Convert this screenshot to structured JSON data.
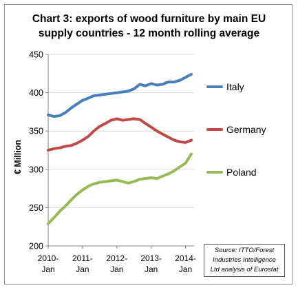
{
  "chart_data": {
    "type": "line",
    "title": [
      "Chart 3: exports of wood furniture by main EU",
      "supply countries - 12 month rolling average"
    ],
    "ylabel": "€ Million",
    "xlabel": "",
    "ylim": [
      200,
      450
    ],
    "yticks": [
      200,
      250,
      300,
      350,
      400,
      450
    ],
    "xlim": [
      2010.0,
      2014.25
    ],
    "xticks": [
      {
        "value": 2010,
        "line1": "2010-",
        "line2": "Jan"
      },
      {
        "value": 2011,
        "line1": "2011-",
        "line2": "Jan"
      },
      {
        "value": 2012,
        "line1": "2012-",
        "line2": "Jan"
      },
      {
        "value": 2013,
        "line1": "2013-",
        "line2": "Jan"
      },
      {
        "value": 2014,
        "line1": "2014-",
        "line2": "Jan"
      }
    ],
    "grid": "horizontal",
    "legend": "right",
    "series": [
      {
        "name": "Italy",
        "color": "#4a7ebb",
        "points": [
          [
            2010.0,
            371
          ],
          [
            2010.17,
            369
          ],
          [
            2010.33,
            370
          ],
          [
            2010.5,
            374
          ],
          [
            2010.67,
            380
          ],
          [
            2010.83,
            385
          ],
          [
            2011.0,
            390
          ],
          [
            2011.17,
            393
          ],
          [
            2011.33,
            396
          ],
          [
            2011.5,
            397
          ],
          [
            2011.67,
            398
          ],
          [
            2011.83,
            399
          ],
          [
            2012.0,
            400
          ],
          [
            2012.17,
            401
          ],
          [
            2012.33,
            402
          ],
          [
            2012.5,
            405
          ],
          [
            2012.67,
            411
          ],
          [
            2012.83,
            409
          ],
          [
            2013.0,
            412
          ],
          [
            2013.17,
            410
          ],
          [
            2013.33,
            411
          ],
          [
            2013.5,
            414
          ],
          [
            2013.67,
            414
          ],
          [
            2013.83,
            416
          ],
          [
            2014.0,
            420
          ],
          [
            2014.17,
            424
          ]
        ]
      },
      {
        "name": "Germany",
        "color": "#be4b48",
        "points": [
          [
            2010.0,
            325
          ],
          [
            2010.17,
            327
          ],
          [
            2010.33,
            328
          ],
          [
            2010.5,
            330
          ],
          [
            2010.67,
            331
          ],
          [
            2010.83,
            334
          ],
          [
            2011.0,
            338
          ],
          [
            2011.17,
            343
          ],
          [
            2011.33,
            350
          ],
          [
            2011.5,
            356
          ],
          [
            2011.67,
            360
          ],
          [
            2011.83,
            364
          ],
          [
            2012.0,
            366
          ],
          [
            2012.17,
            364
          ],
          [
            2012.33,
            365
          ],
          [
            2012.5,
            366
          ],
          [
            2012.67,
            365
          ],
          [
            2012.83,
            360
          ],
          [
            2013.0,
            355
          ],
          [
            2013.17,
            350
          ],
          [
            2013.33,
            346
          ],
          [
            2013.5,
            342
          ],
          [
            2013.67,
            338
          ],
          [
            2013.83,
            336
          ],
          [
            2014.0,
            335
          ],
          [
            2014.17,
            338
          ]
        ]
      },
      {
        "name": "Poland",
        "color": "#98b954",
        "points": [
          [
            2010.0,
            229
          ],
          [
            2010.17,
            237
          ],
          [
            2010.33,
            245
          ],
          [
            2010.5,
            252
          ],
          [
            2010.67,
            260
          ],
          [
            2010.83,
            267
          ],
          [
            2011.0,
            273
          ],
          [
            2011.17,
            278
          ],
          [
            2011.33,
            281
          ],
          [
            2011.5,
            283
          ],
          [
            2011.67,
            284
          ],
          [
            2011.83,
            285
          ],
          [
            2012.0,
            286
          ],
          [
            2012.17,
            284
          ],
          [
            2012.33,
            282
          ],
          [
            2012.5,
            284
          ],
          [
            2012.67,
            287
          ],
          [
            2012.83,
            288
          ],
          [
            2013.0,
            289
          ],
          [
            2013.17,
            288
          ],
          [
            2013.33,
            291
          ],
          [
            2013.5,
            294
          ],
          [
            2013.67,
            298
          ],
          [
            2013.83,
            303
          ],
          [
            2014.0,
            308
          ],
          [
            2014.17,
            320
          ]
        ]
      }
    ],
    "source_note": [
      "Source: ITTO/Forest",
      "Industries Intelligence",
      "Ltd analysis of Eurostat"
    ]
  }
}
